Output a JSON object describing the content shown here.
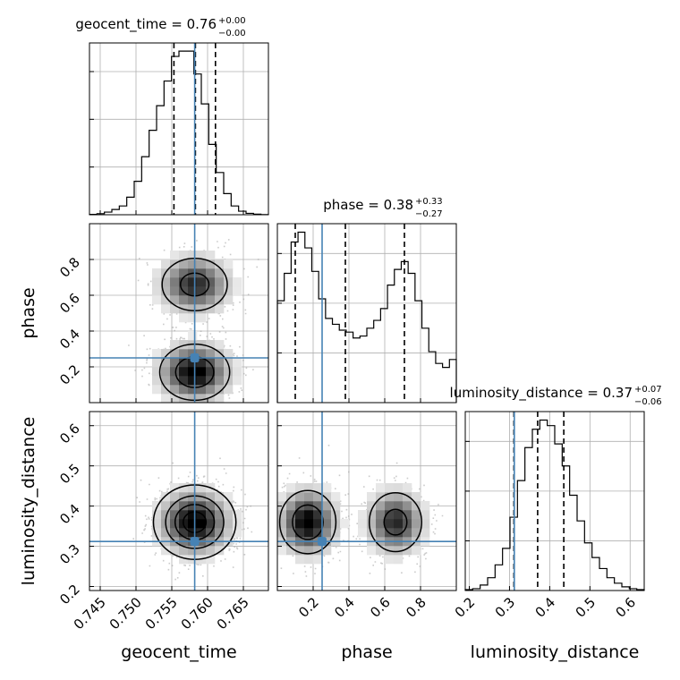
{
  "chart_data": {
    "type": "corner",
    "parameters": [
      {
        "name": "geocent_time",
        "label": "geocent_time",
        "range": [
          0.7435,
          0.7685
        ],
        "ticks": [
          0.745,
          0.75,
          0.755,
          0.76,
          0.765
        ],
        "tick_labels": [
          "0.745",
          "0.750",
          "0.755",
          "0.760",
          "0.765"
        ],
        "truth": 0.7582,
        "quantiles": [
          0.7553,
          0.7583,
          0.7611
        ],
        "title_main": "geocent_time = 0.76",
        "title_sup": "+0.00",
        "title_sub": "−0.00",
        "hist_edges_range": [
          0.7435,
          0.7685
        ],
        "hist_counts": [
          0.2,
          0.6,
          1.5,
          3,
          5,
          10,
          19,
          33,
          48,
          62,
          76,
          90,
          93,
          93,
          80,
          63,
          40,
          24,
          12,
          5,
          2,
          0.8,
          0.3,
          0.1
        ]
      },
      {
        "name": "phase",
        "label": "phase",
        "range": [
          0.0,
          1.0
        ],
        "ticks": [
          0.2,
          0.4,
          0.6,
          0.8
        ],
        "tick_labels": [
          "0.2",
          "0.4",
          "0.6",
          "0.8"
        ],
        "truth": 0.25,
        "quantiles": [
          0.1,
          0.38,
          0.71
        ],
        "title_main": "phase = 0.38",
        "title_sup": "+0.33",
        "title_sub": "−0.27",
        "hist_edges_range": [
          0.0,
          1.0
        ],
        "hist_counts": [
          52,
          66,
          82,
          87,
          79,
          67,
          53,
          43,
          40,
          37,
          36,
          33,
          34,
          38,
          42,
          48,
          60,
          68,
          72,
          66,
          52,
          38,
          26,
          20,
          18,
          22
        ]
      },
      {
        "name": "luminosity_distance",
        "label": "luminosity_distance",
        "range": [
          0.19,
          0.635
        ],
        "ticks": [
          0.2,
          0.3,
          0.4,
          0.5,
          0.6
        ],
        "tick_labels": [
          "0.2",
          "0.3",
          "0.4",
          "0.5",
          "0.6"
        ],
        "truth": 0.312,
        "quantiles": [
          0.311,
          0.37,
          0.435
        ],
        "title_main": "luminosity_distance = 0.37",
        "title_sup": "+0.07",
        "title_sub": "−0.06",
        "hist_edges_range": [
          0.19,
          0.635
        ],
        "hist_counts": [
          0.5,
          1,
          3,
          7,
          14,
          23,
          40,
          60,
          78,
          88,
          93,
          90,
          80,
          68,
          52,
          38,
          26,
          18,
          12,
          7,
          4,
          2,
          1,
          0.5
        ]
      }
    ],
    "posterior_modes": {
      "geocent_time": [
        {
          "mean": 0.7582,
          "sd": 0.0028,
          "weight": 1.0
        }
      ],
      "phase": [
        {
          "mean": 0.17,
          "sd": 0.09,
          "weight": 0.55
        },
        {
          "mean": 0.66,
          "sd": 0.09,
          "weight": 0.45
        }
      ],
      "luminosity_distance": [
        {
          "mean": 0.36,
          "sd": 0.045,
          "weight": 1.0
        }
      ]
    },
    "truth_color": "#4682b4",
    "line_color": "#000000",
    "point_color": "#a0a0a0",
    "grid": true,
    "quantile_style": "dashed"
  }
}
